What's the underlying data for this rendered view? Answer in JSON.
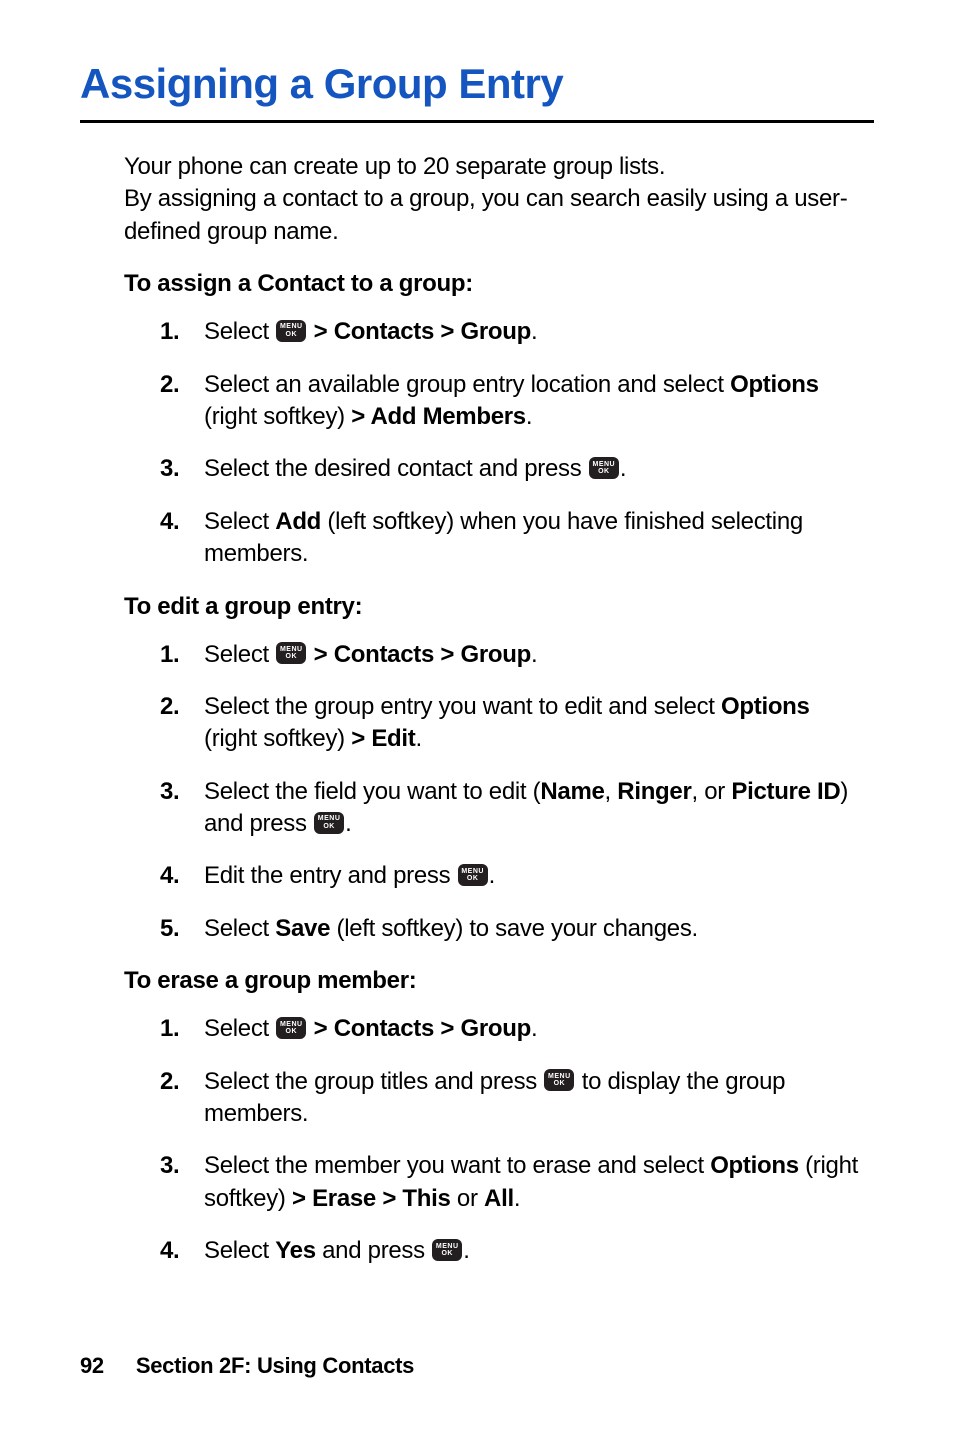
{
  "title": "Assigning a Group Entry",
  "intro": "Your phone can create up to 20 separate group lists.\nBy assigning a contact to a group, you can search easily using a user-defined group name.",
  "sections": {
    "assign": {
      "heading": "To assign a Contact to a group:",
      "steps": {
        "s1": {
          "num": "1.",
          "pre": "Select ",
          "post": " ",
          "b1": "> Contacts > Group",
          "tail": "."
        },
        "s2": {
          "num": "2.",
          "pre": "Select an available group entry location and select ",
          "b1": "Options",
          "mid": " (right softkey) ",
          "b2": "> Add Members",
          "tail": "."
        },
        "s3": {
          "num": "3.",
          "pre": "Select the desired contact and press ",
          "tail": "."
        },
        "s4": {
          "num": "4.",
          "pre": "Select ",
          "b1": "Add",
          "tail": " (left softkey) when you have finished selecting members."
        }
      }
    },
    "edit": {
      "heading": "To edit a group entry:",
      "steps": {
        "s1": {
          "num": "1.",
          "pre": "Select ",
          "post": " ",
          "b1": "> Contacts > Group",
          "tail": "."
        },
        "s2": {
          "num": "2.",
          "pre": "Select the group entry you want to edit and select ",
          "b1": "Options",
          "mid": " (right softkey) ",
          "b2": "> Edit",
          "tail": "."
        },
        "s3": {
          "num": "3.",
          "pre": "Select the field you want to edit (",
          "b1": "Name",
          "mid1": ", ",
          "b2": "Ringer",
          "mid2": ", or ",
          "b3": "Picture ID",
          "mid3": ") and press ",
          "tail": "."
        },
        "s4": {
          "num": "4.",
          "pre": "Edit the entry and press ",
          "tail": "."
        },
        "s5": {
          "num": "5.",
          "pre": "Select ",
          "b1": "Save",
          "tail": " (left softkey) to save your changes."
        }
      }
    },
    "erase": {
      "heading": "To erase a group member:",
      "steps": {
        "s1": {
          "num": "1.",
          "pre": "Select ",
          "post": " ",
          "b1": "> Contacts > Group",
          "tail": "."
        },
        "s2": {
          "num": "2.",
          "pre": "Select the group titles and press ",
          "tail": " to display the group members."
        },
        "s3": {
          "num": "3.",
          "pre": "Select the member you want to erase and select ",
          "b1": "Options",
          "mid": " (right softkey) ",
          "b2": "> Erase > This",
          "mid2": " or ",
          "b3": "All",
          "tail": "."
        },
        "s4": {
          "num": "4.",
          "pre": "Select ",
          "b1": "Yes",
          "mid": " and press ",
          "tail": "."
        }
      }
    }
  },
  "footer": {
    "page": "92",
    "section": "Section 2F: Using Contacts"
  },
  "icon": {
    "l1": "MENU",
    "l2": "OK"
  }
}
